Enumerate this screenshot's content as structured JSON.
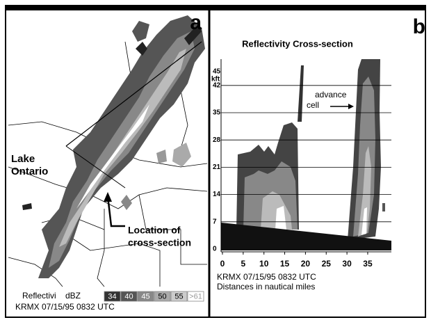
{
  "panels": [
    {
      "label": "a",
      "annotations": [
        {
          "lines": [
            "Lake",
            "Ontario"
          ]
        },
        {
          "lines": [
            "Location of",
            "cross-section"
          ]
        }
      ],
      "legend": {
        "title": "Reflectivi",
        "unit": "dBZ",
        "levels": [
          "34",
          "40",
          "45",
          "50",
          "55",
          ">61"
        ]
      },
      "footer": "KRMX 07/15/95 0832 UTC"
    },
    {
      "label": "b",
      "title": "Reflectivity Cross-section",
      "y_unit": "kft",
      "yticks": [
        0,
        7,
        14,
        21,
        28,
        35,
        42,
        45
      ],
      "xticks": [
        0,
        5,
        10,
        15,
        20,
        25,
        30,
        35
      ],
      "annotation": [
        "advance",
        "cell"
      ],
      "footer": [
        "KRMX 07/15/95 0832 UTC",
        "Distances in nautical miles"
      ]
    }
  ]
}
